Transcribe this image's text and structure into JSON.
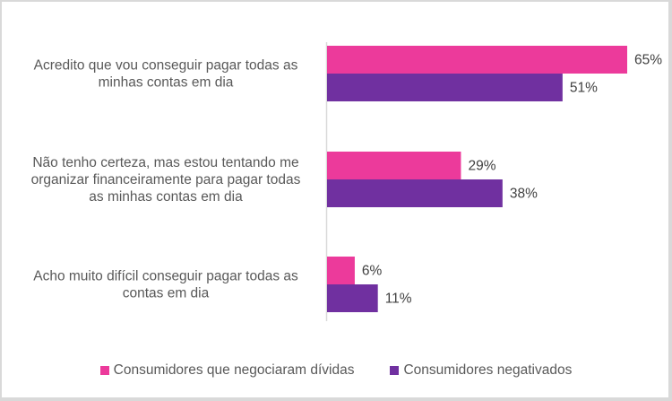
{
  "chart_data": {
    "type": "bar",
    "orientation": "horizontal",
    "title": "",
    "xlabel": "",
    "ylabel": "",
    "xlim": [
      0,
      65
    ],
    "grid": false,
    "legend_position": "bottom",
    "categories": [
      [
        "Acredito que vou conseguir pagar todas as",
        "minhas contas em dia"
      ],
      [
        "Não tenho certeza, mas estou tentando me",
        "organizar financeiramente para pagar todas",
        "as minhas contas em dia"
      ],
      [
        "Acho muito difícil conseguir pagar todas as",
        "contas em dia"
      ]
    ],
    "series": [
      {
        "name": "Consumidores que negociaram dívidas",
        "color": "#EC3A9B",
        "values": [
          65,
          29,
          6
        ],
        "labels": [
          "65%",
          "29%",
          "6%"
        ]
      },
      {
        "name": "Consumidores negativados",
        "color": "#7030A0",
        "values": [
          51,
          38,
          11
        ],
        "labels": [
          "51%",
          "38%",
          "11%"
        ]
      }
    ]
  }
}
